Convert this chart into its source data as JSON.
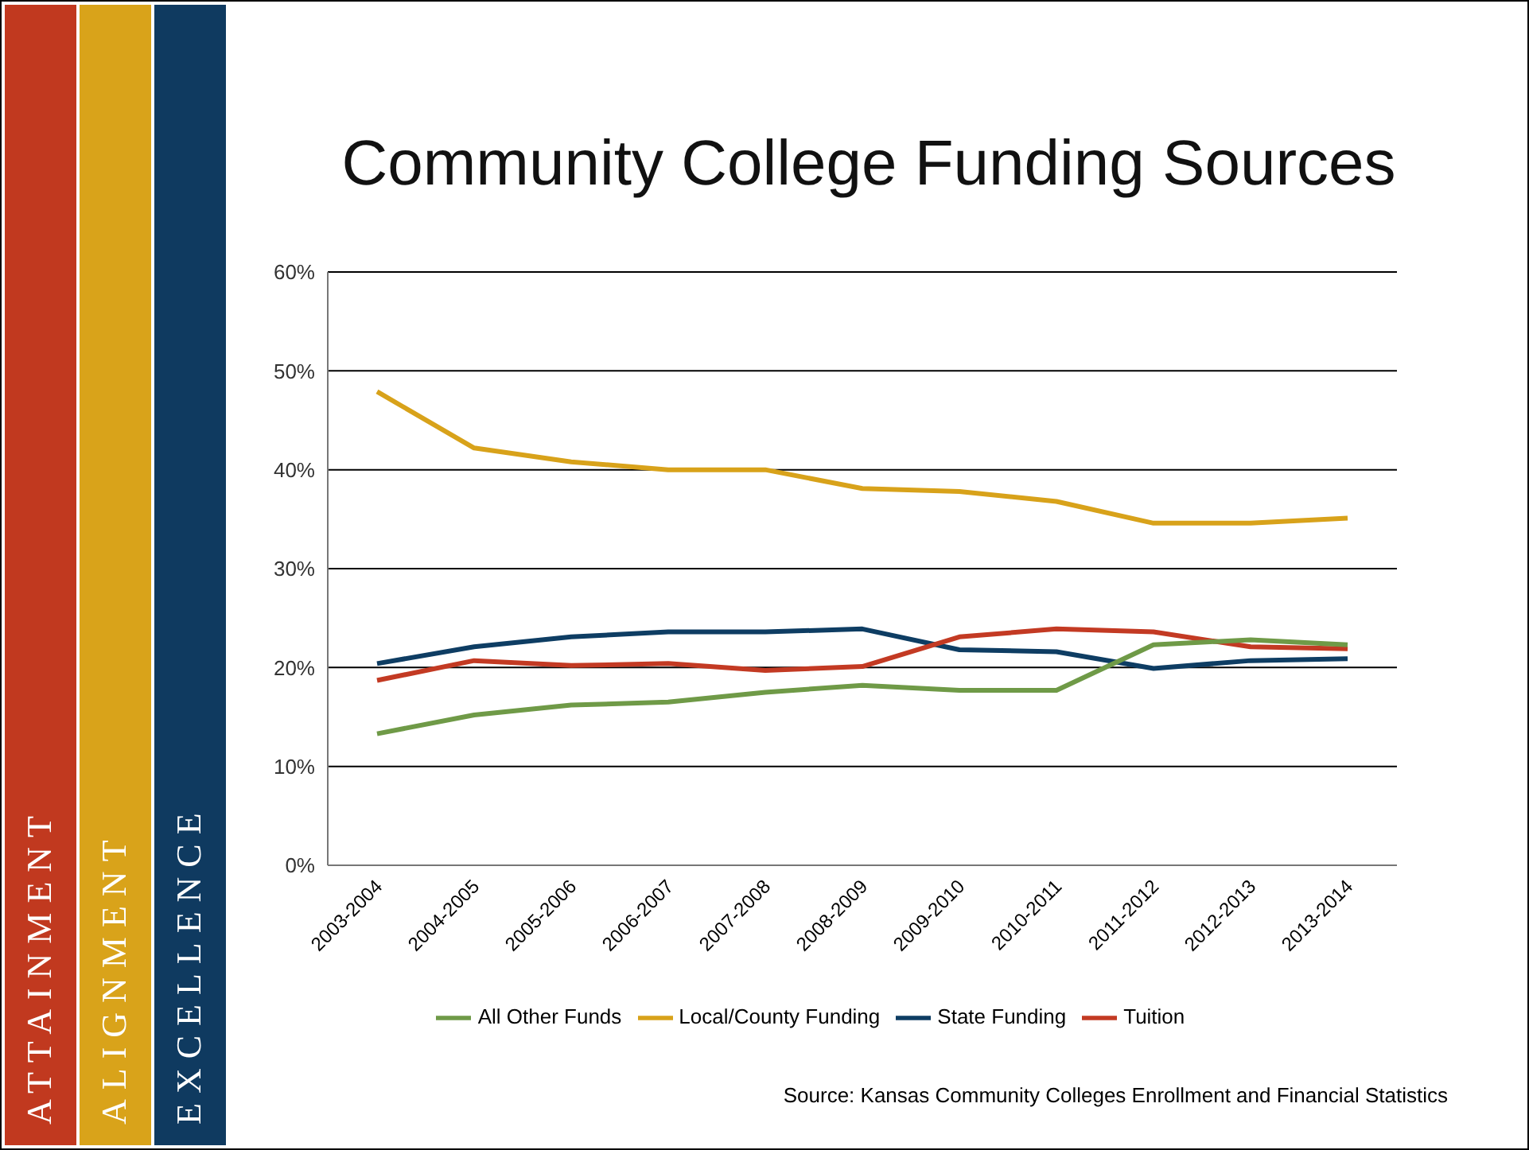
{
  "chart_data": {
    "type": "line",
    "title": "Community College Funding Sources",
    "categories": [
      "2003-2004",
      "2004-2005",
      "2005-2006",
      "2006-2007",
      "2007-2008",
      "2008-2009",
      "2009-2010",
      "2010-2011",
      "2011-2012",
      "2012-2013",
      "2013-2014"
    ],
    "series": [
      {
        "name": "State Funding",
        "color": "#0e3d63",
        "values": [
          20.4,
          22.1,
          23.1,
          23.6,
          23.6,
          23.9,
          21.8,
          21.6,
          19.9,
          20.7,
          20.9
        ]
      },
      {
        "name": "Local/County Funding",
        "color": "#d8a21a",
        "values": [
          47.9,
          42.2,
          40.8,
          40.0,
          40.0,
          38.1,
          37.8,
          36.8,
          34.6,
          34.6,
          35.1
        ]
      },
      {
        "name": "Tuition",
        "color": "#c33a23",
        "values": [
          18.7,
          20.7,
          20.2,
          20.4,
          19.7,
          20.1,
          23.1,
          23.9,
          23.6,
          22.1,
          21.9
        ]
      },
      {
        "name": "All Other Funds",
        "color": "#6f9a47",
        "values": [
          13.3,
          15.2,
          16.2,
          16.5,
          17.5,
          18.2,
          17.7,
          17.7,
          22.3,
          22.8,
          22.3
        ]
      }
    ],
    "ylim": [
      0,
      60
    ],
    "yticks": [
      {
        "value": 0,
        "label": "0%"
      },
      {
        "value": 10,
        "label": "10%"
      },
      {
        "value": 20,
        "label": "20%"
      },
      {
        "value": 30,
        "label": "30%"
      },
      {
        "value": 40,
        "label": "40%"
      },
      {
        "value": 50,
        "label": "50%"
      },
      {
        "value": 60,
        "label": "60%"
      }
    ],
    "grid": "y",
    "legend": "bottom",
    "marker": "none",
    "line_style": "solid",
    "annotations": [
      "ATTAINMENT",
      "ALIGNMENT",
      "EXCELLENCE",
      "Source: Kansas Community Colleges Enrollment and Financial Statistics"
    ]
  }
}
